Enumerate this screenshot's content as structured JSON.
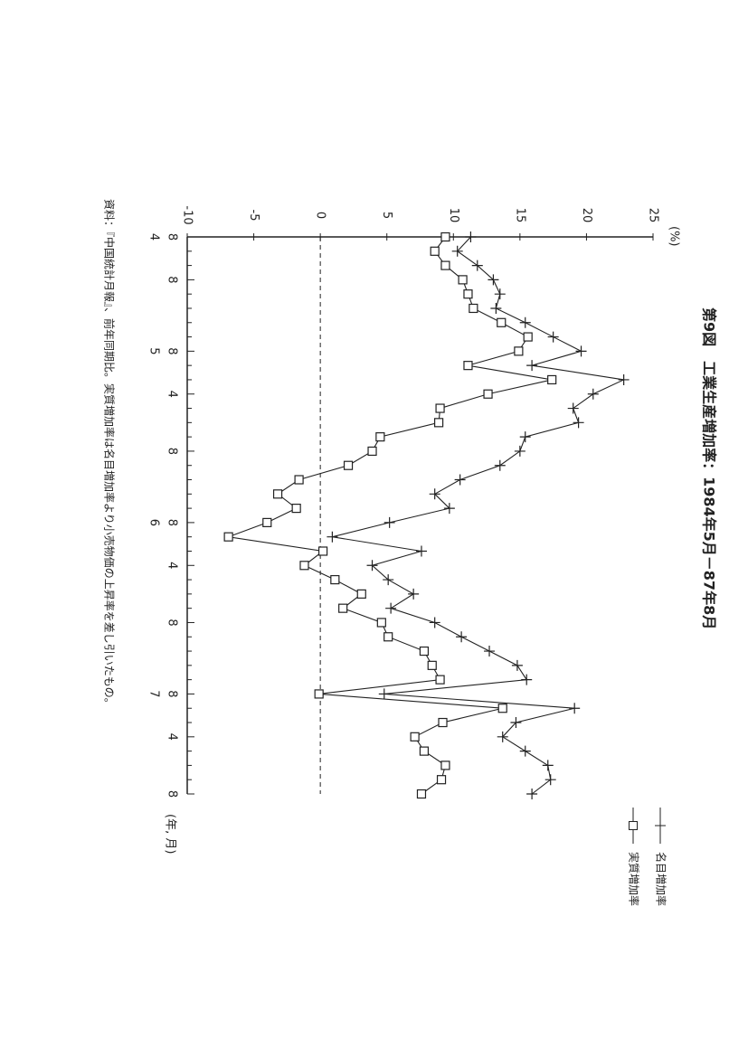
{
  "chart_data": {
    "type": "line",
    "title": "第9図　工業生産増加率：1984年5月－87年8月",
    "y_label": "(%)",
    "x_label": "(年, 月)",
    "source": "資料：『中国統計月報』、前年同期比。実質増加率は名目増加率より小売物価の上昇率を差し引いたもの。",
    "categories": [
      "8",
      null,
      null,
      "8",
      null,
      null,
      null,
      null,
      "8",
      null,
      null,
      "4",
      null,
      null,
      null,
      "8",
      null,
      null,
      null,
      null,
      "8",
      null,
      null,
      "4",
      null,
      null,
      null,
      "8",
      null,
      null,
      null,
      null,
      "8",
      null,
      null,
      "4",
      null,
      null,
      null,
      "8"
    ],
    "x_year_labels": [
      "4",
      null,
      null,
      null,
      null,
      null,
      null,
      null,
      "5",
      null,
      null,
      null,
      null,
      null,
      null,
      null,
      null,
      null,
      null,
      null,
      "6",
      null,
      null,
      null,
      null,
      null,
      null,
      null,
      null,
      null,
      null,
      null,
      "7",
      null,
      null,
      null,
      null,
      null,
      null,
      null
    ],
    "series": [
      {
        "name": "名目増加率",
        "color": "#222222",
        "marker": "plus",
        "values": [
          11.3,
          10.3,
          11.8,
          13.0,
          13.5,
          13.2,
          15.4,
          17.5,
          19.6,
          15.9,
          22.8,
          20.5,
          19.0,
          19.4,
          15.4,
          15.0,
          13.5,
          10.5,
          8.6,
          9.7,
          5.2,
          0.9,
          7.6,
          3.9,
          5.1,
          7.0,
          5.3,
          8.6,
          10.6,
          12.7,
          14.8,
          15.5,
          4.8,
          19.1,
          14.7,
          13.7,
          15.4,
          17.1,
          17.3,
          15.9
        ]
      },
      {
        "name": "実質増加率",
        "color": "#222222",
        "marker": "square",
        "values": [
          9.4,
          8.6,
          9.4,
          10.7,
          11.1,
          11.5,
          13.6,
          15.6,
          14.9,
          11.1,
          17.4,
          12.6,
          9.0,
          8.9,
          4.5,
          3.9,
          2.1,
          -1.6,
          -3.2,
          -1.8,
          -4.0,
          -6.9,
          0.2,
          -1.2,
          1.1,
          3.1,
          1.7,
          4.6,
          5.1,
          7.8,
          8.4,
          9.0,
          -0.1,
          13.7,
          9.2,
          7.1,
          7.8,
          9.4,
          9.1,
          7.6
        ]
      }
    ],
    "ylim": [
      -10,
      25
    ],
    "yticks": [
      -10,
      -5,
      0,
      5,
      10,
      15,
      20,
      25
    ],
    "zero_line": "dashed"
  }
}
